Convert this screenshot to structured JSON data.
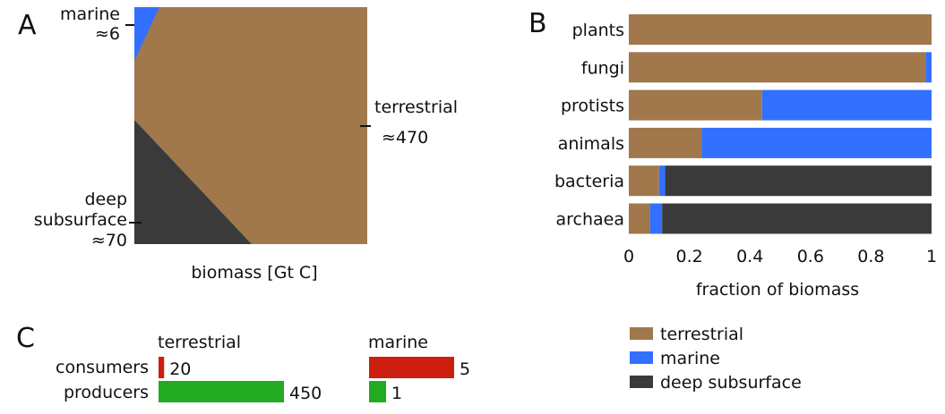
{
  "colors": {
    "terrestrial": "#A0784C",
    "marine": "#3370FF",
    "deep_subsurface": "#3A3A3A",
    "consumers": "#CC1F10",
    "producers": "#22AA22"
  },
  "chart_data": [
    {
      "panel": "A",
      "type": "area",
      "xlabel": "biomass [Gt C]",
      "regions": [
        {
          "name": "marine",
          "value_label": "≈6",
          "value": 6
        },
        {
          "name": "terrestrial",
          "value_label": "≈470",
          "value": 470
        },
        {
          "name": "deep\nsubsurface",
          "value_label": "≈70",
          "value": 70
        }
      ]
    },
    {
      "panel": "B",
      "type": "bar",
      "orientation": "horizontal",
      "stacked": true,
      "xlabel": "fraction of biomass",
      "xlim": [
        0,
        1
      ],
      "xticks": [
        "0",
        "0.2",
        "0.4",
        "0.6",
        "0.8",
        "1"
      ],
      "categories": [
        "plants",
        "fungi",
        "protists",
        "animals",
        "bacteria",
        "archaea"
      ],
      "series": [
        {
          "name": "terrestrial",
          "values": [
            1.0,
            0.98,
            0.44,
            0.24,
            0.1,
            0.07
          ]
        },
        {
          "name": "marine",
          "values": [
            0.0,
            0.02,
            0.56,
            0.76,
            0.02,
            0.04
          ]
        },
        {
          "name": "deep subsurface",
          "values": [
            0.0,
            0.0,
            0.0,
            0.0,
            0.88,
            0.89
          ]
        }
      ],
      "legend": [
        "terrestrial",
        "marine",
        "deep subsurface"
      ],
      "legend_position": "bottom-right"
    },
    {
      "panel": "C",
      "type": "bar",
      "orientation": "horizontal",
      "categories": [
        "consumers",
        "producers"
      ],
      "groups": [
        {
          "name": "terrestrial",
          "values": [
            20,
            450
          ]
        },
        {
          "name": "marine",
          "values": [
            5,
            1
          ]
        }
      ]
    }
  ]
}
